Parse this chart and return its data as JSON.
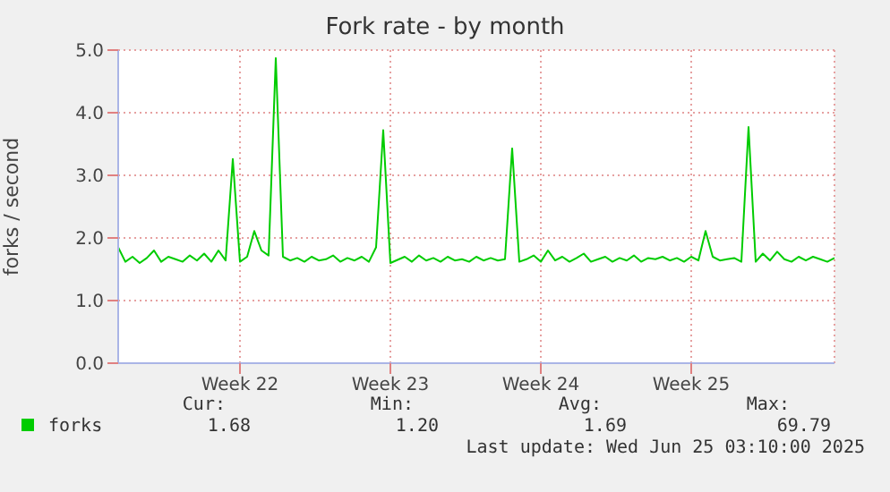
{
  "chart_data": {
    "type": "line",
    "title": "Fork rate - by month",
    "ylabel": "forks / second",
    "categories": [
      null,
      null,
      null,
      null,
      null,
      null,
      null,
      null,
      null,
      null,
      null,
      null,
      null,
      null,
      null,
      null,
      null,
      "Week 22",
      null,
      null,
      null,
      null,
      null,
      null,
      null,
      null,
      null,
      null,
      null,
      null,
      null,
      null,
      null,
      null,
      null,
      null,
      null,
      null,
      "Week 23",
      null,
      null,
      null,
      null,
      null,
      null,
      null,
      null,
      null,
      null,
      null,
      null,
      null,
      null,
      null,
      null,
      null,
      null,
      null,
      null,
      "Week 24",
      null,
      null,
      null,
      null,
      null,
      null,
      null,
      null,
      null,
      null,
      null,
      null,
      null,
      null,
      null,
      null,
      null,
      null,
      null,
      null,
      "Week 25",
      null,
      null,
      null,
      null,
      null,
      null,
      null,
      null,
      null,
      null,
      null,
      null,
      null,
      null,
      null,
      null,
      null,
      null,
      null,
      null
    ],
    "series": [
      {
        "name": "forks",
        "color": "#00cc00",
        "values": [
          1.85,
          1.62,
          1.7,
          1.6,
          1.68,
          1.8,
          1.62,
          1.7,
          1.66,
          1.62,
          1.72,
          1.64,
          1.75,
          1.62,
          1.8,
          1.64,
          3.26,
          1.62,
          1.7,
          2.11,
          1.8,
          1.72,
          4.87,
          1.7,
          1.64,
          1.68,
          1.62,
          1.7,
          1.64,
          1.66,
          1.72,
          1.62,
          1.68,
          1.64,
          1.7,
          1.62,
          1.85,
          3.72,
          1.6,
          1.65,
          1.7,
          1.62,
          1.72,
          1.64,
          1.68,
          1.62,
          1.7,
          1.64,
          1.66,
          1.62,
          1.7,
          1.64,
          1.68,
          1.64,
          1.66,
          3.43,
          1.62,
          1.66,
          1.72,
          1.62,
          1.8,
          1.64,
          1.7,
          1.62,
          1.68,
          1.75,
          1.62,
          1.66,
          1.7,
          1.62,
          1.68,
          1.64,
          1.72,
          1.62,
          1.68,
          1.66,
          1.7,
          1.64,
          1.68,
          1.62,
          1.7,
          1.64,
          2.11,
          1.7,
          1.64,
          1.66,
          1.68,
          1.62,
          3.77,
          1.62,
          1.75,
          1.64,
          1.78,
          1.66,
          1.62,
          1.7,
          1.64,
          1.7,
          1.66,
          1.62,
          1.68
        ]
      }
    ],
    "ylim": [
      0,
      5
    ],
    "yticks": [
      {
        "value": 0,
        "label": "0.0"
      },
      {
        "value": 1,
        "label": "1.0"
      },
      {
        "value": 2,
        "label": "2.0"
      },
      {
        "value": 3,
        "label": "3.0"
      },
      {
        "value": 4,
        "label": "4.0"
      },
      {
        "value": 5,
        "label": "5.0"
      }
    ],
    "grid": true,
    "legend": "bottom left",
    "marker": "none",
    "line_style": "solid",
    "annotations": [
      "Cur:",
      "Min:",
      "Avg:",
      "Max:",
      "1.68",
      "1.20",
      "1.69",
      "69.79",
      "Last update: Wed Jun 25 03:10:00 2025"
    ]
  }
}
